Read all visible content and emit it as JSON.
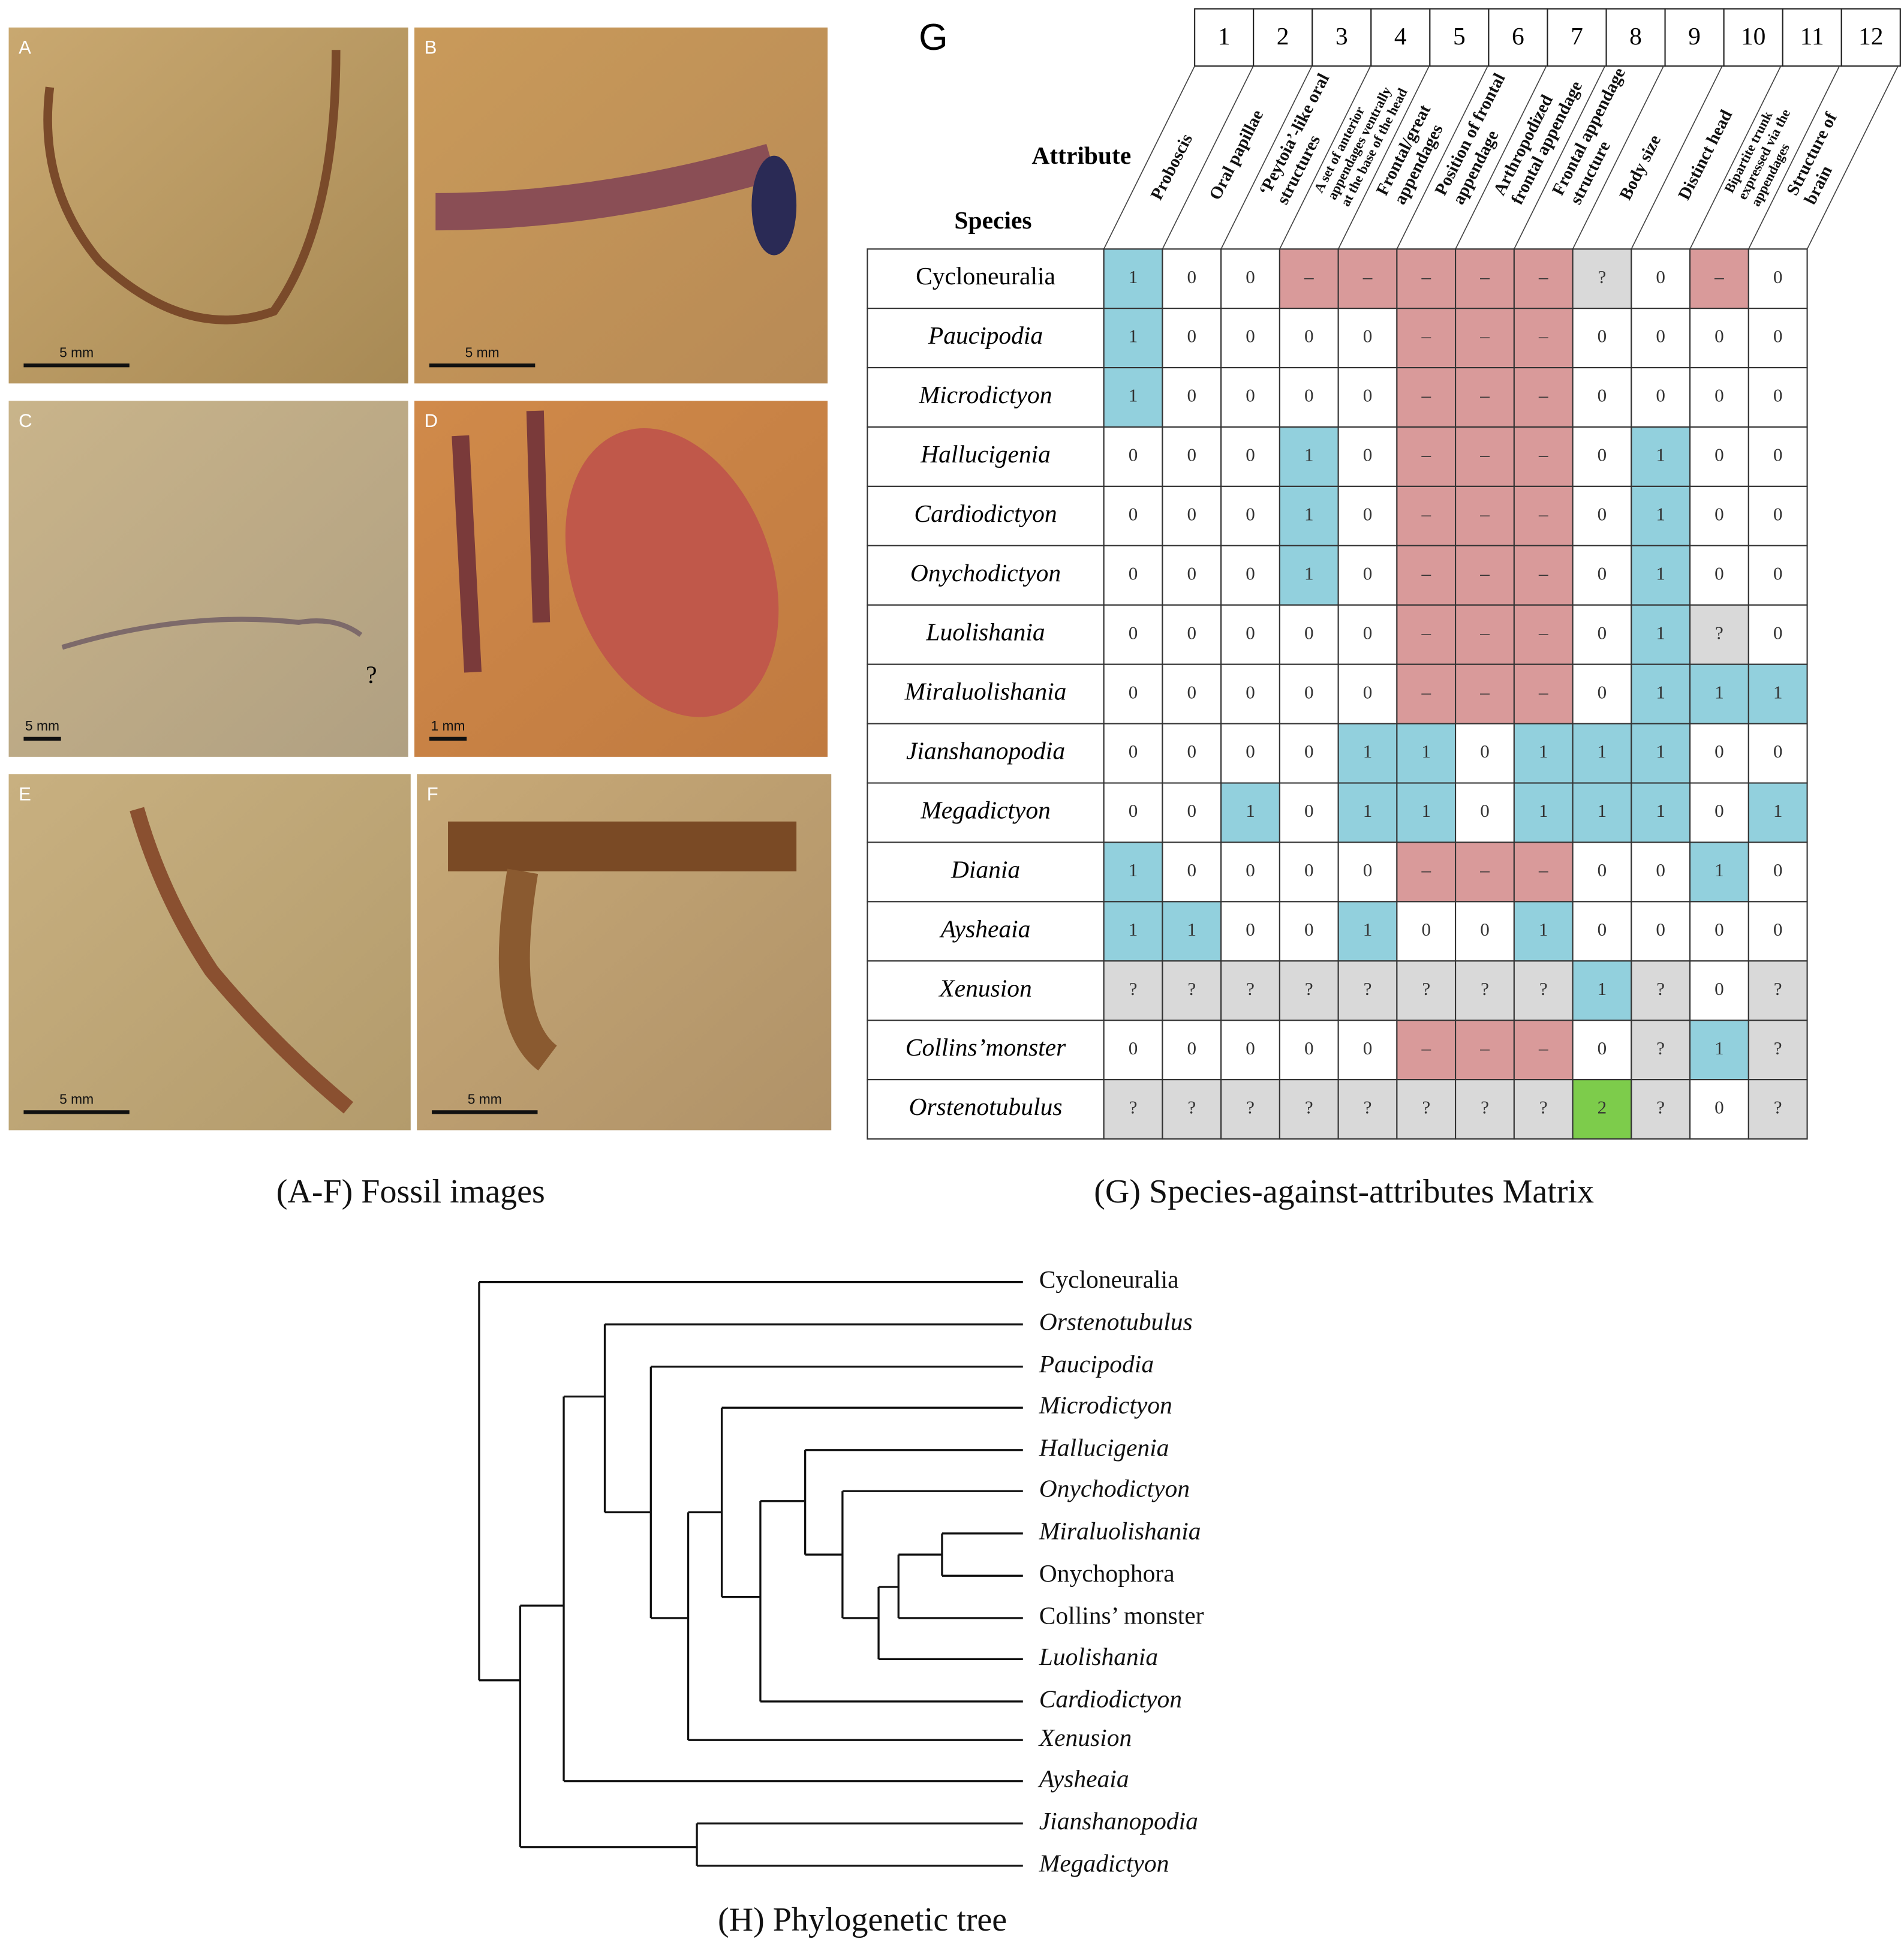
{
  "fossils": {
    "panels": [
      {
        "letter": "A",
        "scale": "5 mm"
      },
      {
        "letter": "B",
        "scale": "5 mm"
      },
      {
        "letter": "C",
        "scale": "5 mm",
        "annotation": "?"
      },
      {
        "letter": "D",
        "scale": "1 mm"
      },
      {
        "letter": "E",
        "scale": "5 mm"
      },
      {
        "letter": "F",
        "scale": "5 mm"
      }
    ],
    "caption": "(A-F) Fossil images"
  },
  "matrix": {
    "letter": "G",
    "attribute_heading": "Attribute",
    "species_heading": "Species",
    "cell_colors": {
      "1": "#92d0dd",
      "–": "#d99a9a",
      "?": "#d9d9d9",
      "2": "#7dcc4b"
    },
    "columns": [
      "1",
      "2",
      "3",
      "4",
      "5",
      "6",
      "7",
      "8",
      "9",
      "10",
      "11",
      "12"
    ],
    "attributes": [
      [
        "Proboscis"
      ],
      [
        "Oral papillae"
      ],
      [
        "‘Peytoia’-like oral",
        "structures"
      ],
      [
        "A set of anterior",
        "appendages ventrally",
        "at the base of the head"
      ],
      [
        "Frontal/great",
        "appendages"
      ],
      [
        "Position of frontal",
        "appendage"
      ],
      [
        "Arthropodized",
        "frontal appendage"
      ],
      [
        "Frontal appendage",
        "structure"
      ],
      [
        "Body size"
      ],
      [
        "Distinct head"
      ],
      [
        "Bipartite trunk",
        "expressed via the",
        "appendages"
      ],
      [
        "Structure of",
        "brain"
      ]
    ],
    "rows": [
      {
        "species": "Cycloneuralia",
        "italic": false,
        "cells": [
          "1",
          "0",
          "0",
          "–",
          "–",
          "–",
          "–",
          "–",
          "?",
          "0",
          "–",
          "0"
        ]
      },
      {
        "species": "Paucipodia",
        "italic": true,
        "cells": [
          "1",
          "0",
          "0",
          "0",
          "0",
          "–",
          "–",
          "–",
          "0",
          "0",
          "0",
          "0"
        ]
      },
      {
        "species": "Microdictyon",
        "italic": true,
        "cells": [
          "1",
          "0",
          "0",
          "0",
          "0",
          "–",
          "–",
          "–",
          "0",
          "0",
          "0",
          "0"
        ]
      },
      {
        "species": "Hallucigenia",
        "italic": true,
        "cells": [
          "0",
          "0",
          "0",
          "1",
          "0",
          "–",
          "–",
          "–",
          "0",
          "1",
          "0",
          "0"
        ]
      },
      {
        "species": "Cardiodictyon",
        "italic": true,
        "cells": [
          "0",
          "0",
          "0",
          "1",
          "0",
          "–",
          "–",
          "–",
          "0",
          "1",
          "0",
          "0"
        ]
      },
      {
        "species": "Onychodictyon",
        "italic": true,
        "cells": [
          "0",
          "0",
          "0",
          "1",
          "0",
          "–",
          "–",
          "–",
          "0",
          "1",
          "0",
          "0"
        ]
      },
      {
        "species": "Luolishania",
        "italic": true,
        "cells": [
          "0",
          "0",
          "0",
          "0",
          "0",
          "–",
          "–",
          "–",
          "0",
          "1",
          "?",
          "0"
        ]
      },
      {
        "species": "Miraluolishania",
        "italic": true,
        "cells": [
          "0",
          "0",
          "0",
          "0",
          "0",
          "–",
          "–",
          "–",
          "0",
          "1",
          "1",
          "1"
        ]
      },
      {
        "species": "Jianshanopodia",
        "italic": true,
        "cells": [
          "0",
          "0",
          "0",
          "0",
          "1",
          "1",
          "0",
          "1",
          "1",
          "1",
          "0",
          "0"
        ]
      },
      {
        "species": "Megadictyon",
        "italic": true,
        "cells": [
          "0",
          "0",
          "1",
          "0",
          "1",
          "1",
          "0",
          "1",
          "1",
          "1",
          "0",
          "1"
        ]
      },
      {
        "species": "Diania",
        "italic": true,
        "cells": [
          "1",
          "0",
          "0",
          "0",
          "0",
          "–",
          "–",
          "–",
          "0",
          "0",
          "1",
          "0"
        ]
      },
      {
        "species": "Aysheaia",
        "italic": true,
        "cells": [
          "1",
          "1",
          "0",
          "0",
          "1",
          "0",
          "0",
          "1",
          "0",
          "0",
          "0",
          "0"
        ]
      },
      {
        "species": "Xenusion",
        "italic": true,
        "cells": [
          "?",
          "?",
          "?",
          "?",
          "?",
          "?",
          "?",
          "?",
          "1",
          "?",
          "0",
          "?"
        ]
      },
      {
        "species": "Collins’monster",
        "italic": true,
        "cells": [
          "0",
          "0",
          "0",
          "0",
          "0",
          "–",
          "–",
          "–",
          "0",
          "?",
          "1",
          "?"
        ]
      },
      {
        "species": "Orstenotubulus",
        "italic": true,
        "cells": [
          "?",
          "?",
          "?",
          "?",
          "?",
          "?",
          "?",
          "?",
          "2",
          "?",
          "0",
          "?"
        ]
      }
    ],
    "caption": "(G) Species-against-attributes Matrix"
  },
  "tree": {
    "leaves": [
      {
        "label": "Cycloneuralia",
        "italic": false
      },
      {
        "label": "Orstenotubulus",
        "italic": true
      },
      {
        "label": "Paucipodia",
        "italic": true
      },
      {
        "label": "Microdictyon",
        "italic": true
      },
      {
        "label": "Hallucigenia",
        "italic": true
      },
      {
        "label": "Onychodictyon",
        "italic": true
      },
      {
        "label": "Miraluolishania",
        "italic": true
      },
      {
        "label": "Onychophora",
        "italic": false
      },
      {
        "label": "Collins’ monster",
        "italic": false
      },
      {
        "label": "Luolishania",
        "italic": true
      },
      {
        "label": "Cardiodictyon",
        "italic": true
      },
      {
        "label": "Xenusion",
        "italic": true
      },
      {
        "label": "Aysheaia",
        "italic": true
      },
      {
        "label": "Jianshanopodia",
        "italic": true
      },
      {
        "label": "Megadictyon",
        "italic": true
      }
    ],
    "caption": "(H) Phylogenetic tree"
  }
}
